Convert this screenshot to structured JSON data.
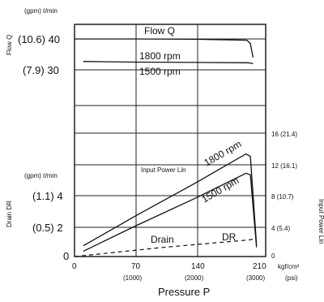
{
  "chart_data": {
    "type": "line",
    "x_axis": {
      "label": "Pressure P",
      "unit_kgf": "kgf/cm²",
      "unit_psi": "(psi)",
      "ticks_kgf": [
        "0",
        "70",
        "140",
        "210"
      ],
      "ticks_psi": [
        "(1000)",
        "(2000)",
        "(3000)"
      ],
      "range": [
        0,
        210
      ]
    },
    "flow_axis": {
      "units": "(gpm) ℓ/min",
      "label": "Flow Q",
      "ticks": [
        "(10.6) 40",
        "(7.9) 30"
      ]
    },
    "drain_axis": {
      "units": "(gpm) ℓ/min",
      "label": "Drain DR",
      "ticks": [
        "(1.1) 4",
        "(0.5) 2",
        "0"
      ]
    },
    "power_axis": {
      "label": "Input Power Lin",
      "ticks": [
        "16 (21.4)",
        "12 (16.1)",
        "8 (10.7)",
        "4 (5.4)",
        "0"
      ],
      "range": [
        0,
        16
      ]
    },
    "annotations": {
      "flow_title": "Flow Q",
      "rpm_1800": "1800 rpm",
      "rpm_1500": "1500 rpm",
      "power_rpm_1800": "1800 rpm",
      "power_rpm_1500": "1500 rpm",
      "input_power": "Input Power Lin",
      "drain": "Drain",
      "dr": "DR"
    },
    "series": [
      {
        "name": "1800 rpm",
        "group": "flow",
        "x": [
          0,
          70,
          140,
          196,
          200,
          203
        ],
        "y": [
          40,
          40,
          39.9,
          39.6,
          38.5,
          34
        ]
      },
      {
        "name": "1500 rpm",
        "group": "flow",
        "x": [
          10,
          70,
          140,
          196,
          200,
          203
        ],
        "y": [
          32.7,
          32.5,
          32.4,
          32.3,
          32.2,
          32.0
        ]
      },
      {
        "name": "1800 rpm",
        "group": "power",
        "x": [
          10,
          70,
          140,
          195,
          200,
          207
        ],
        "y": [
          1.4,
          5.3,
          9.7,
          13.3,
          13.0,
          1.5
        ]
      },
      {
        "name": "1500 rpm",
        "group": "power",
        "x": [
          10,
          70,
          140,
          195,
          200,
          207
        ],
        "y": [
          0.7,
          4.0,
          7.7,
          10.8,
          10.6,
          1.2
        ]
      },
      {
        "name": "Drain DR",
        "group": "drain",
        "x": [
          0,
          50,
          100,
          150,
          190,
          200,
          205
        ],
        "y": [
          0,
          0.3,
          0.6,
          0.85,
          1.05,
          1.1,
          1.2
        ]
      }
    ]
  }
}
